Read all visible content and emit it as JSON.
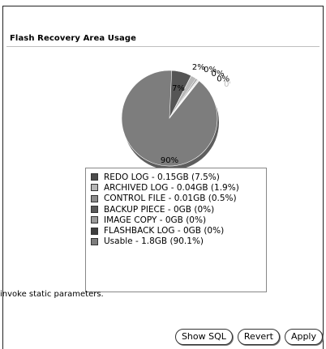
{
  "section": {
    "title": "Flash Recovery Area Usage"
  },
  "chart_data": {
    "type": "pie",
    "slice_labels": [
      "7%",
      "2%",
      "0%",
      "0%",
      "0%",
      "0%",
      "90%"
    ],
    "slices": [
      {
        "name": "REDO LOG - 0.15GB (7.5%)",
        "value": 7.5,
        "label": "7%",
        "color": "#555555"
      },
      {
        "name": "ARCHIVED LOG - 0.04GB (1.9%)",
        "value": 1.9,
        "label": "2%",
        "color": "#b9b9b9"
      },
      {
        "name": "CONTROL FILE - 0.01GB (0.5%)",
        "value": 0.5,
        "label": "0%",
        "color": "#8a8a8a"
      },
      {
        "name": "BACKUP PIECE - 0GB (0%)",
        "value": 0,
        "label": "0%",
        "color": "#666666"
      },
      {
        "name": "IMAGE COPY - 0GB (0%)",
        "value": 0,
        "label": "0%",
        "color": "#999999"
      },
      {
        "name": "FLASHBACK LOG - 0GB (0%)",
        "value": 0,
        "label": "0%",
        "color": "#c9c9c9"
      },
      {
        "name": "Usable  - 1.8GB (90.1%)",
        "value": 90.1,
        "label": "90%",
        "color": "#7d7d7d"
      }
    ]
  },
  "legend": {
    "items": [
      {
        "label": "REDO LOG - 0.15GB (7.5%)",
        "color": "#4c4c4c"
      },
      {
        "label": "ARCHIVED LOG - 0.04GB (1.9%)",
        "color": "#b6b6b6"
      },
      {
        "label": "CONTROL FILE - 0.01GB (0.5%)",
        "color": "#8c8c8c"
      },
      {
        "label": "BACKUP PIECE - 0GB (0%)",
        "color": "#595959"
      },
      {
        "label": "IMAGE COPY - 0GB (0%)",
        "color": "#9a9a9a"
      },
      {
        "label": "FLASHBACK LOG - 0GB (0%)",
        "color": "#3f3f3f"
      },
      {
        "label": "Usable  - 1.8GB (90.1%)",
        "color": "#7d7d7d"
      }
    ]
  },
  "note": "invoke static parameters.",
  "buttons": {
    "show_sql": "Show SQL",
    "revert": "Revert",
    "apply": "Apply"
  }
}
